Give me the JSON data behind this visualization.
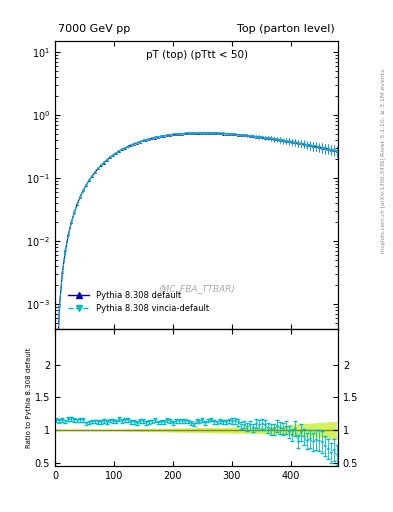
{
  "title_left": "7000 GeV pp",
  "title_right": "Top (parton level)",
  "plot_title": "pT (top) (pTtt < 50)",
  "watermark": "(MC_FBA_TTBAR)",
  "right_label_top": "Rivet 3.1.10, ≥ 3.1M events",
  "right_label_bottom": "mcplots.cern.ch [arXiv:1306.3436]",
  "ylabel_ratio": "Ratio to Pythia 8.308 default",
  "xlim": [
    0,
    480
  ],
  "ylim_main": [
    0.0004,
    15
  ],
  "ylim_ratio": [
    0.5,
    2.5
  ],
  "ratio_yticks": [
    0.5,
    1.0,
    1.5,
    2.0
  ],
  "line1_color": "#0000bb",
  "line2_color": "#00bbcc",
  "band_color": "#ccee44",
  "ref_line_color": "#888800",
  "legend_line1": "Pythia 8.308 default",
  "legend_line2": "Pythia 8.308 vincia-default"
}
